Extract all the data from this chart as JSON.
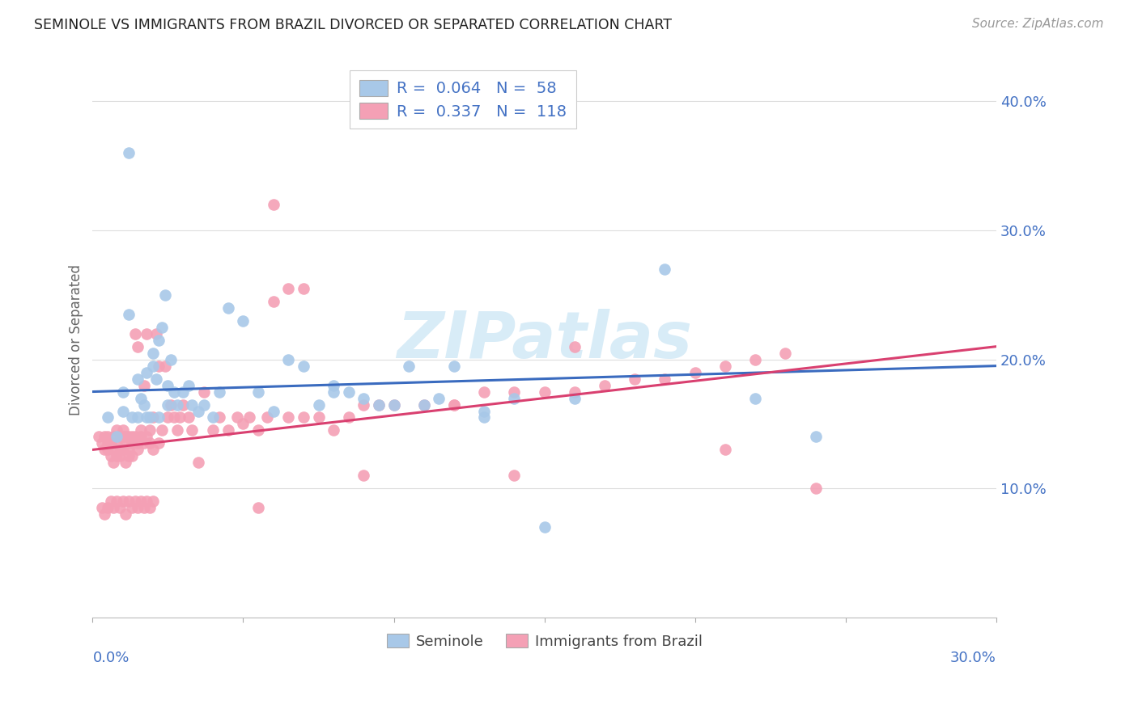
{
  "title": "SEMINOLE VS IMMIGRANTS FROM BRAZIL DIVORCED OR SEPARATED CORRELATION CHART",
  "source": "Source: ZipAtlas.com",
  "ylabel": "Divorced or Separated",
  "xlim": [
    0.0,
    0.3
  ],
  "ylim": [
    0.0,
    0.43
  ],
  "right_ytick_vals": [
    0.1,
    0.2,
    0.3,
    0.4
  ],
  "right_ytick_labels": [
    "10.0%",
    "20.0%",
    "30.0%",
    "40.0%"
  ],
  "x_tick_vals": [
    0.0,
    0.05,
    0.1,
    0.15,
    0.2,
    0.25,
    0.3
  ],
  "seminole_R": 0.064,
  "seminole_N": 58,
  "brazil_R": 0.337,
  "brazil_N": 118,
  "seminole_color": "#a8c8e8",
  "brazil_color": "#f4a0b5",
  "seminole_line_color": "#3a6bbf",
  "brazil_line_color": "#d94070",
  "watermark_text": "ZIPatlas",
  "watermark_color": "#c8e4f4",
  "seminole_scatter_x": [
    0.005,
    0.008,
    0.01,
    0.01,
    0.012,
    0.013,
    0.015,
    0.015,
    0.016,
    0.017,
    0.018,
    0.018,
    0.019,
    0.02,
    0.02,
    0.021,
    0.022,
    0.022,
    0.023,
    0.024,
    0.025,
    0.025,
    0.026,
    0.027,
    0.028,
    0.03,
    0.032,
    0.033,
    0.035,
    0.037,
    0.04,
    0.042,
    0.045,
    0.05,
    0.055,
    0.06,
    0.065,
    0.07,
    0.075,
    0.08,
    0.085,
    0.09,
    0.095,
    0.1,
    0.105,
    0.11,
    0.115,
    0.12,
    0.13,
    0.14,
    0.15,
    0.16,
    0.19,
    0.22,
    0.24,
    0.012,
    0.08,
    0.13
  ],
  "seminole_scatter_y": [
    0.155,
    0.14,
    0.175,
    0.16,
    0.36,
    0.155,
    0.155,
    0.185,
    0.17,
    0.165,
    0.155,
    0.19,
    0.155,
    0.205,
    0.195,
    0.185,
    0.215,
    0.155,
    0.225,
    0.25,
    0.18,
    0.165,
    0.2,
    0.175,
    0.165,
    0.175,
    0.18,
    0.165,
    0.16,
    0.165,
    0.155,
    0.175,
    0.24,
    0.23,
    0.175,
    0.16,
    0.2,
    0.195,
    0.165,
    0.18,
    0.175,
    0.17,
    0.165,
    0.165,
    0.195,
    0.165,
    0.17,
    0.195,
    0.16,
    0.17,
    0.07,
    0.17,
    0.27,
    0.17,
    0.14,
    0.235,
    0.175,
    0.155
  ],
  "brazil_scatter_x": [
    0.002,
    0.003,
    0.004,
    0.004,
    0.005,
    0.005,
    0.005,
    0.006,
    0.006,
    0.007,
    0.007,
    0.007,
    0.008,
    0.008,
    0.008,
    0.009,
    0.009,
    0.009,
    0.01,
    0.01,
    0.01,
    0.011,
    0.011,
    0.011,
    0.012,
    0.012,
    0.012,
    0.013,
    0.013,
    0.013,
    0.014,
    0.014,
    0.015,
    0.015,
    0.015,
    0.016,
    0.016,
    0.017,
    0.017,
    0.018,
    0.018,
    0.019,
    0.019,
    0.02,
    0.02,
    0.021,
    0.022,
    0.022,
    0.023,
    0.024,
    0.025,
    0.026,
    0.027,
    0.028,
    0.029,
    0.03,
    0.032,
    0.033,
    0.035,
    0.037,
    0.04,
    0.042,
    0.045,
    0.048,
    0.05,
    0.052,
    0.055,
    0.058,
    0.06,
    0.065,
    0.07,
    0.075,
    0.08,
    0.085,
    0.09,
    0.095,
    0.1,
    0.11,
    0.12,
    0.13,
    0.14,
    0.15,
    0.16,
    0.17,
    0.18,
    0.19,
    0.2,
    0.21,
    0.22,
    0.23,
    0.003,
    0.004,
    0.005,
    0.006,
    0.007,
    0.008,
    0.009,
    0.01,
    0.011,
    0.012,
    0.013,
    0.014,
    0.015,
    0.016,
    0.017,
    0.018,
    0.019,
    0.02,
    0.055,
    0.06,
    0.065,
    0.07,
    0.12,
    0.14,
    0.16,
    0.21,
    0.24,
    0.09
  ],
  "brazil_scatter_y": [
    0.14,
    0.135,
    0.13,
    0.14,
    0.13,
    0.135,
    0.14,
    0.125,
    0.135,
    0.12,
    0.13,
    0.14,
    0.125,
    0.135,
    0.145,
    0.13,
    0.14,
    0.125,
    0.14,
    0.13,
    0.145,
    0.12,
    0.135,
    0.14,
    0.125,
    0.14,
    0.13,
    0.135,
    0.14,
    0.125,
    0.14,
    0.22,
    0.13,
    0.135,
    0.21,
    0.14,
    0.145,
    0.18,
    0.135,
    0.14,
    0.22,
    0.145,
    0.135,
    0.13,
    0.155,
    0.22,
    0.135,
    0.195,
    0.145,
    0.195,
    0.155,
    0.165,
    0.155,
    0.145,
    0.155,
    0.165,
    0.155,
    0.145,
    0.12,
    0.175,
    0.145,
    0.155,
    0.145,
    0.155,
    0.15,
    0.155,
    0.145,
    0.155,
    0.32,
    0.155,
    0.155,
    0.155,
    0.145,
    0.155,
    0.165,
    0.165,
    0.165,
    0.165,
    0.165,
    0.175,
    0.175,
    0.175,
    0.175,
    0.18,
    0.185,
    0.185,
    0.19,
    0.195,
    0.2,
    0.205,
    0.085,
    0.08,
    0.085,
    0.09,
    0.085,
    0.09,
    0.085,
    0.09,
    0.08,
    0.09,
    0.085,
    0.09,
    0.085,
    0.09,
    0.085,
    0.09,
    0.085,
    0.09,
    0.085,
    0.245,
    0.255,
    0.255,
    0.165,
    0.11,
    0.21,
    0.13,
    0.1,
    0.11
  ]
}
